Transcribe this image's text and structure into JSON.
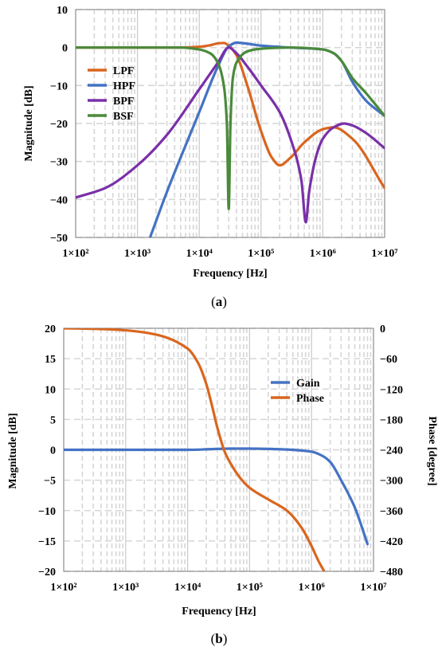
{
  "colors": {
    "orange": "#D9661F",
    "blue": "#4472C4",
    "purple": "#7A30A8",
    "green": "#4A8A3A",
    "grid_major": "#C8C8C8",
    "grid_minor": "#D6D6D6"
  },
  "chart_data": [
    {
      "type": "line",
      "caption": "a",
      "xlabel": "Frequency [Hz]",
      "ylabel": "Magnitude [dB]",
      "x_scale": "log",
      "xlim": [
        100,
        10000000
      ],
      "ylim": [
        -50,
        10
      ],
      "x_ticks": [
        100,
        1000,
        10000,
        100000,
        1000000,
        10000000
      ],
      "x_tick_labels": [
        "1×10²",
        "1×10³",
        "1×10⁴",
        "1×10⁵",
        "1×10⁶",
        "1×10⁷"
      ],
      "y_ticks": [
        -50,
        -40,
        -30,
        -20,
        -10,
        0,
        10
      ],
      "y_tick_labels": [
        "−50",
        "−40",
        "−30",
        "−20",
        "−10",
        "0",
        "10"
      ],
      "grid": true,
      "legend_position": "left-middle",
      "series": [
        {
          "name": "LPF",
          "color": "#D9661F",
          "x": [
            100,
            1000,
            5000,
            10000,
            15000,
            20000,
            25000,
            30000,
            40000,
            60000,
            100000,
            150000,
            200000,
            300000,
            500000,
            1000000,
            1500000,
            3000000,
            10000000
          ],
          "y": [
            0,
            0,
            0,
            0.2,
            0.6,
            1.1,
            1.2,
            0.5,
            -2,
            -10,
            -22,
            -29,
            -31,
            -29,
            -25,
            -21.5,
            -21,
            -24,
            -37
          ]
        },
        {
          "name": "HPF",
          "color": "#4472C4",
          "x": [
            1600,
            3000,
            10000,
            20000,
            30000,
            40000,
            60000,
            100000,
            300000,
            1000000,
            1500000,
            2000000,
            3000000,
            5000000,
            10000000
          ],
          "y": [
            -50,
            -38,
            -17,
            -5,
            0.3,
            1.3,
            1,
            0.5,
            0,
            -0.5,
            -1.5,
            -3.5,
            -9,
            -14,
            -18
          ]
        },
        {
          "name": "BPF",
          "color": "#7A30A8",
          "x": [
            100,
            300,
            1000,
            3000,
            10000,
            20000,
            30000,
            40000,
            60000,
            100000,
            200000,
            300000,
            450000,
            530000,
            600000,
            800000,
            1000000,
            1500000,
            2200000,
            3000000,
            5000000,
            10000000
          ],
          "y": [
            -39.5,
            -37,
            -31,
            -23,
            -11,
            -4,
            0,
            -1.5,
            -5,
            -10,
            -17,
            -24,
            -35,
            -46,
            -38,
            -28,
            -24,
            -21,
            -20,
            -20.5,
            -22.5,
            -26.5
          ]
        },
        {
          "name": "BSF",
          "color": "#4A8A3A",
          "x": [
            100,
            1000,
            5000,
            10000,
            15000,
            20000,
            25000,
            28000,
            30000,
            32000,
            35000,
            40000,
            60000,
            100000,
            300000,
            1000000,
            1500000,
            2000000,
            3000000,
            5000000,
            10000000
          ],
          "y": [
            0,
            0,
            0,
            -0.5,
            -1.5,
            -4,
            -10,
            -20,
            -42.5,
            -20,
            -8,
            -4,
            -1,
            -0.3,
            0,
            -0.5,
            -1.5,
            -3.5,
            -8,
            -12,
            -18
          ]
        }
      ]
    },
    {
      "type": "line",
      "caption": "b",
      "xlabel": "Frequency [Hz]",
      "ylabel": "Magnitude [dB]",
      "y2label": "Phase [degree]",
      "x_scale": "log",
      "xlim": [
        100,
        10000000
      ],
      "ylim": [
        -20,
        20
      ],
      "y2lim": [
        -480,
        0
      ],
      "x_ticks": [
        100,
        1000,
        10000,
        100000,
        1000000,
        10000000
      ],
      "x_tick_labels": [
        "1×10²",
        "1×10³",
        "1×10⁴",
        "1×10⁵",
        "1×10⁶",
        "1×10⁷"
      ],
      "y_ticks": [
        -20,
        -15,
        -10,
        -5,
        0,
        5,
        10,
        15,
        20
      ],
      "y_tick_labels": [
        "−20",
        "−15",
        "−10",
        "−5",
        "0",
        "5",
        "10",
        "15",
        "20"
      ],
      "y2_ticks": [
        -480,
        -420,
        -360,
        -300,
        -240,
        -180,
        -120,
        -60,
        0
      ],
      "y2_tick_labels": [
        "−480",
        "−420",
        "−360",
        "−300",
        "−240",
        "−180",
        "−120",
        "−60",
        "0"
      ],
      "grid": true,
      "legend_position": "right-upper",
      "series": [
        {
          "name": "Gain",
          "color": "#4472C4",
          "axis": "left",
          "x": [
            100,
            1000,
            10000,
            50000,
            100000,
            300000,
            1000000,
            1500000,
            2000000,
            3000000,
            5000000,
            8000000
          ],
          "y": [
            0,
            0,
            0,
            0.2,
            0.2,
            0.1,
            -0.3,
            -1,
            -2,
            -5,
            -9.5,
            -15.5
          ]
        },
        {
          "name": "Phase",
          "color": "#D9661F",
          "axis": "right",
          "x": [
            100,
            300,
            1000,
            3000,
            10000,
            15000,
            20000,
            25000,
            30000,
            40000,
            50000,
            70000,
            100000,
            200000,
            400000,
            700000,
            1000000,
            1300000,
            1600000
          ],
          "y": [
            0,
            -1,
            -4,
            -12,
            -40,
            -70,
            -110,
            -155,
            -195,
            -245,
            -268,
            -295,
            -315,
            -338,
            -360,
            -395,
            -430,
            -460,
            -480
          ]
        }
      ]
    }
  ]
}
